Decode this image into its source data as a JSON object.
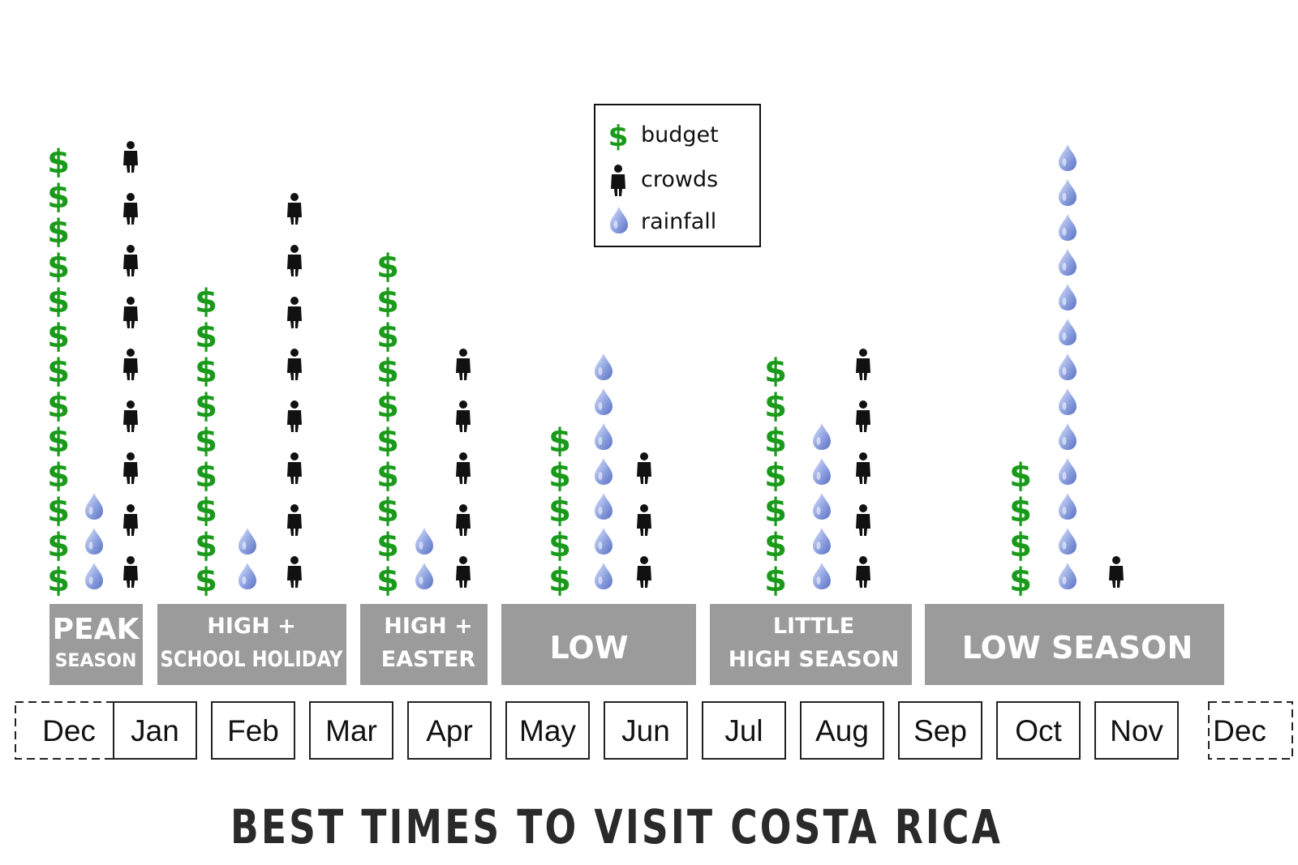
{
  "chart_data": {
    "type": "pictograph",
    "title": "BEST TIMES TO VISIT COSTA RICA",
    "legend": [
      {
        "key": "budget",
        "label": "budget",
        "icon": "dollar-icon",
        "color": "#1a9a1a"
      },
      {
        "key": "crowds",
        "label": "crowds",
        "icon": "person-icon",
        "color": "#111111"
      },
      {
        "key": "rainfall",
        "label": "rainfall",
        "icon": "raindrop-icon",
        "color": "#7f95d8"
      }
    ],
    "months": [
      "Dec",
      "Jan",
      "Feb",
      "Mar",
      "Apr",
      "May",
      "Jun",
      "Jul",
      "Aug",
      "Sep",
      "Oct",
      "Nov",
      "Dec"
    ],
    "seasons": [
      {
        "line1": "PEAK",
        "line2": "SEASON",
        "budget": 13,
        "rainfall": 3,
        "crowds": 9
      },
      {
        "line1": "HIGH +",
        "line2": "SCHOOL HOLIDAY",
        "budget": 9,
        "rainfall": 2,
        "crowds": 8
      },
      {
        "line1": "HIGH +",
        "line2": "EASTER",
        "budget": 10,
        "rainfall": 2,
        "crowds": 5
      },
      {
        "line1": "LOW",
        "line2": "",
        "budget": 5,
        "rainfall": 7,
        "crowds": 3
      },
      {
        "line1": "LITTLE",
        "line2": "HIGH SEASON",
        "budget": 7,
        "rainfall": 5,
        "crowds": 5
      },
      {
        "line1": "LOW SEASON",
        "line2": "",
        "budget": 4,
        "rainfall": 13,
        "crowds": 1
      }
    ]
  }
}
